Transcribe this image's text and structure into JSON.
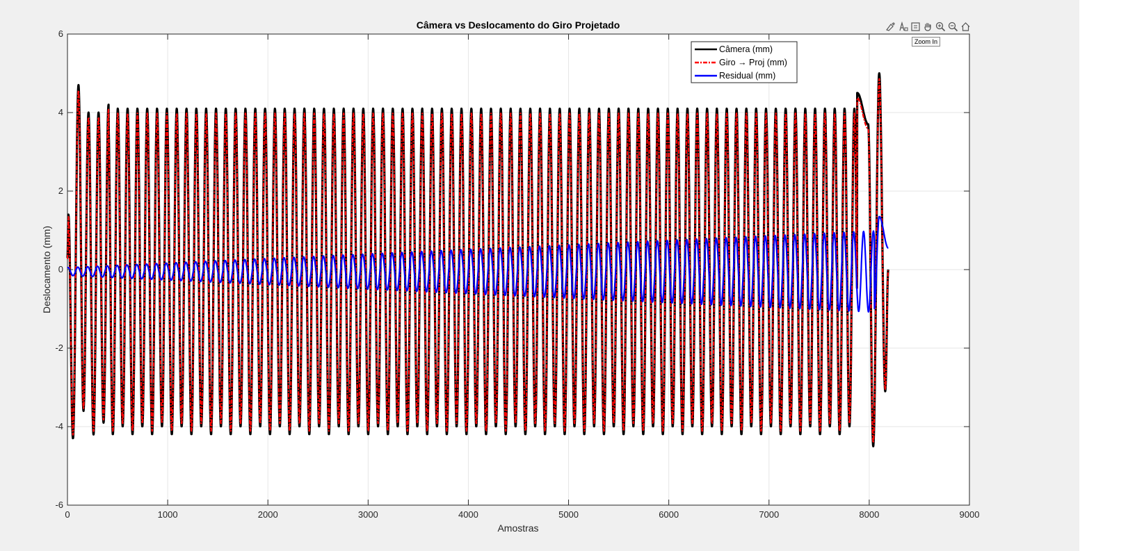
{
  "window": {
    "background": "#f0f0f0",
    "right_panel_color": "#ffffff"
  },
  "toolbar": {
    "buttons": [
      {
        "name": "brush-icon"
      },
      {
        "name": "data-tips-icon"
      },
      {
        "name": "restore-view-icon"
      },
      {
        "name": "pan-hand-icon"
      },
      {
        "name": "zoom-in-icon"
      },
      {
        "name": "zoom-out-icon"
      },
      {
        "name": "home-icon"
      }
    ],
    "tooltip": "Zoom In"
  },
  "chart_data": {
    "type": "line",
    "title": "Câmera vs Deslocamento do Giro Projetado",
    "xlabel": "Amostras",
    "ylabel": "Deslocamento (mm)",
    "xlim": [
      0,
      9000
    ],
    "ylim": [
      -6,
      6
    ],
    "xticks": [
      "0",
      "1000",
      "2000",
      "3000",
      "4000",
      "5000",
      "6000",
      "7000",
      "8000",
      "9000"
    ],
    "yticks": [
      "-6",
      "-4",
      "-2",
      "0",
      "2",
      "4",
      "6"
    ],
    "grid": true,
    "legend_position": "top-right",
    "samples": 8190,
    "oscillation_period_samples": 98,
    "series": [
      {
        "name": "Câmera (mm)",
        "color": "#000000",
        "style": "solid",
        "description_points": [
          {
            "x": 0,
            "y": 0.3
          },
          {
            "x": 10,
            "y": 1.4
          },
          {
            "x": 55,
            "y": -4.3
          },
          {
            "x": 110,
            "y": 4.7
          },
          {
            "x": 160,
            "y": -3.6
          },
          {
            "x": 210,
            "y": 4.0
          },
          {
            "x": 260,
            "y": -4.2
          },
          {
            "x": 310,
            "y": 4.0
          },
          {
            "x": 360,
            "y": -3.9
          },
          {
            "x": 410,
            "y": 4.2
          }
        ],
        "typical_amplitude": 4.1,
        "end_points": [
          {
            "x": 7880,
            "y": 4.5
          },
          {
            "x": 7990,
            "y": 3.7
          },
          {
            "x": 8040,
            "y": -4.5
          },
          {
            "x": 8100,
            "y": 5.0
          },
          {
            "x": 8160,
            "y": -3.1
          },
          {
            "x": 8190,
            "y": 0.0
          }
        ]
      },
      {
        "name": "Giro → Proj (mm)",
        "color": "#ff0000",
        "style": "dash-dot",
        "typical_amplitude": 4.0
      },
      {
        "name": "Residual (mm)",
        "color": "#0000ff",
        "style": "solid",
        "amplitude_start": 0.1,
        "amplitude_end": 1.05,
        "end_points": [
          {
            "x": 8100,
            "y": 1.35
          },
          {
            "x": 8190,
            "y": 0.55
          }
        ]
      }
    ]
  }
}
